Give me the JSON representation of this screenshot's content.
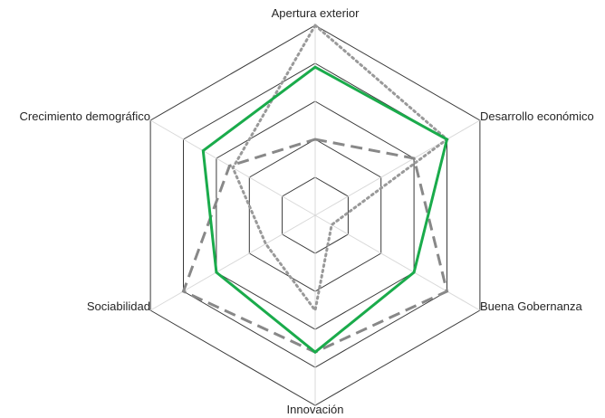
{
  "chart_data": {
    "type": "radar",
    "title": "",
    "axes": [
      "Apertura exterior",
      "Desarrollo económico",
      "Buena Gobernanza",
      "Innovación",
      "Sociabilidad",
      "Crecimiento demográfico"
    ],
    "rmax": 5,
    "grid_levels": [
      1,
      2,
      3,
      4,
      5
    ],
    "grid": true,
    "legend": "none",
    "series": [
      {
        "values": [
          3.9,
          4.0,
          3.0,
          3.6,
          3.0,
          3.4
        ],
        "color": "#1aab4b",
        "style": "solid"
      },
      {
        "values": [
          2.0,
          3.0,
          4.0,
          3.6,
          4.0,
          2.6
        ],
        "color": "#888888",
        "style": "dashed"
      },
      {
        "values": [
          5.0,
          4.0,
          0.5,
          2.5,
          1.5,
          2.5
        ],
        "color": "#999999",
        "style": "dotted"
      }
    ]
  }
}
